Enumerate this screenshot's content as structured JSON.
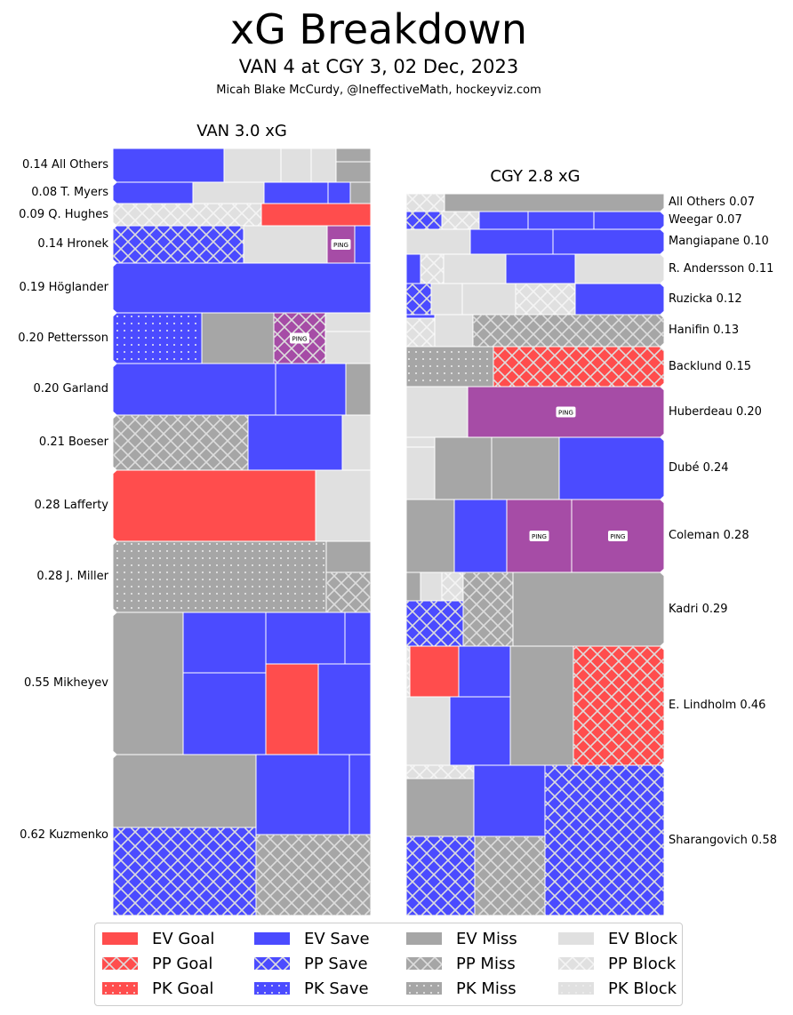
{
  "header": {
    "title": "xG Breakdown",
    "subtitle": "VAN 4 at CGY 3, 02 Dec, 2023",
    "credit": "Micah Blake McCurdy, @IneffectiveMath, hockeyviz.com"
  },
  "chart_data": {
    "type": "treemap",
    "title": "xG Breakdown",
    "colors": {
      "Goal": "#ff4d4d",
      "Save": "#4b4bff",
      "Miss": "#a6a6a6",
      "Block": "#e0e0e0",
      "Ping": "#a64ca6",
      "hatch": "#dddddd"
    },
    "ping_label": "PING",
    "teams": [
      {
        "team": "VAN",
        "title": "VAN 3.0 xG",
        "total_xg": 3.0,
        "players": [
          {
            "label": "0.14 All Others",
            "name": "All Others",
            "xg": 0.14
          },
          {
            "label": "0.08 T. Myers",
            "name": "T. Myers",
            "xg": 0.08
          },
          {
            "label": "0.09 Q. Hughes",
            "name": "Q. Hughes",
            "xg": 0.09
          },
          {
            "label": "0.14 Hronek",
            "name": "Hronek",
            "xg": 0.14
          },
          {
            "label": "0.19 Höglander",
            "name": "Höglander",
            "xg": 0.19
          },
          {
            "label": "0.20 Pettersson",
            "name": "Pettersson",
            "xg": 0.2
          },
          {
            "label": "0.20 Garland",
            "name": "Garland",
            "xg": 0.2
          },
          {
            "label": "0.21 Boeser",
            "name": "Boeser",
            "xg": 0.21
          },
          {
            "label": "0.28 Lafferty",
            "name": "Lafferty",
            "xg": 0.28
          },
          {
            "label": "0.28 J. Miller",
            "name": "J. Miller",
            "xg": 0.28
          },
          {
            "label": "0.55 Mikheyev",
            "name": "Mikheyev",
            "xg": 0.55
          },
          {
            "label": "0.62 Kuzmenko",
            "name": "Kuzmenko",
            "xg": 0.62
          }
        ]
      },
      {
        "team": "CGY",
        "title": "CGY 2.8 xG",
        "total_xg": 2.8,
        "players": [
          {
            "label": "All Others 0.07",
            "name": "All Others",
            "xg": 0.07
          },
          {
            "label": "Weegar 0.07",
            "name": "Weegar",
            "xg": 0.07
          },
          {
            "label": "Mangiapane 0.10",
            "name": "Mangiapane",
            "xg": 0.1
          },
          {
            "label": "R. Andersson 0.11",
            "name": "R. Andersson",
            "xg": 0.11
          },
          {
            "label": "Ruzicka 0.12",
            "name": "Ruzicka",
            "xg": 0.12
          },
          {
            "label": "Hanifin 0.13",
            "name": "Hanifin",
            "xg": 0.13
          },
          {
            "label": "Backlund 0.15",
            "name": "Backlund",
            "xg": 0.15
          },
          {
            "label": "Huberdeau 0.20",
            "name": "Huberdeau",
            "xg": 0.2
          },
          {
            "label": "Dubé 0.24",
            "name": "Dubé",
            "xg": 0.24
          },
          {
            "label": "Coleman 0.28",
            "name": "Coleman",
            "xg": 0.28
          },
          {
            "label": "Kadri 0.29",
            "name": "Kadri",
            "xg": 0.29
          },
          {
            "label": "E. Lindholm 0.46",
            "name": "E. Lindholm",
            "xg": 0.46
          },
          {
            "label": "Sharangovich 0.58",
            "name": "Sharangovich",
            "xg": 0.58
          }
        ]
      }
    ],
    "legend": {
      "placement": "bottom",
      "entries": [
        {
          "label": "EV Goal",
          "outcome": "Goal",
          "strength": "EV"
        },
        {
          "label": "PP Goal",
          "outcome": "Goal",
          "strength": "PP"
        },
        {
          "label": "PK Goal",
          "outcome": "Goal",
          "strength": "PK"
        },
        {
          "label": "EV Save",
          "outcome": "Save",
          "strength": "EV"
        },
        {
          "label": "PP Save",
          "outcome": "Save",
          "strength": "PP"
        },
        {
          "label": "PK Save",
          "outcome": "Save",
          "strength": "PK"
        },
        {
          "label": "EV Miss",
          "outcome": "Miss",
          "strength": "EV"
        },
        {
          "label": "PP Miss",
          "outcome": "Miss",
          "strength": "PP"
        },
        {
          "label": "PK Miss",
          "outcome": "Miss",
          "strength": "PK"
        },
        {
          "label": "EV Block",
          "outcome": "Block",
          "strength": "EV"
        },
        {
          "label": "PP Block",
          "outcome": "Block",
          "strength": "PP"
        },
        {
          "label": "PK Block",
          "outcome": "Block",
          "strength": "PK"
        }
      ]
    }
  }
}
